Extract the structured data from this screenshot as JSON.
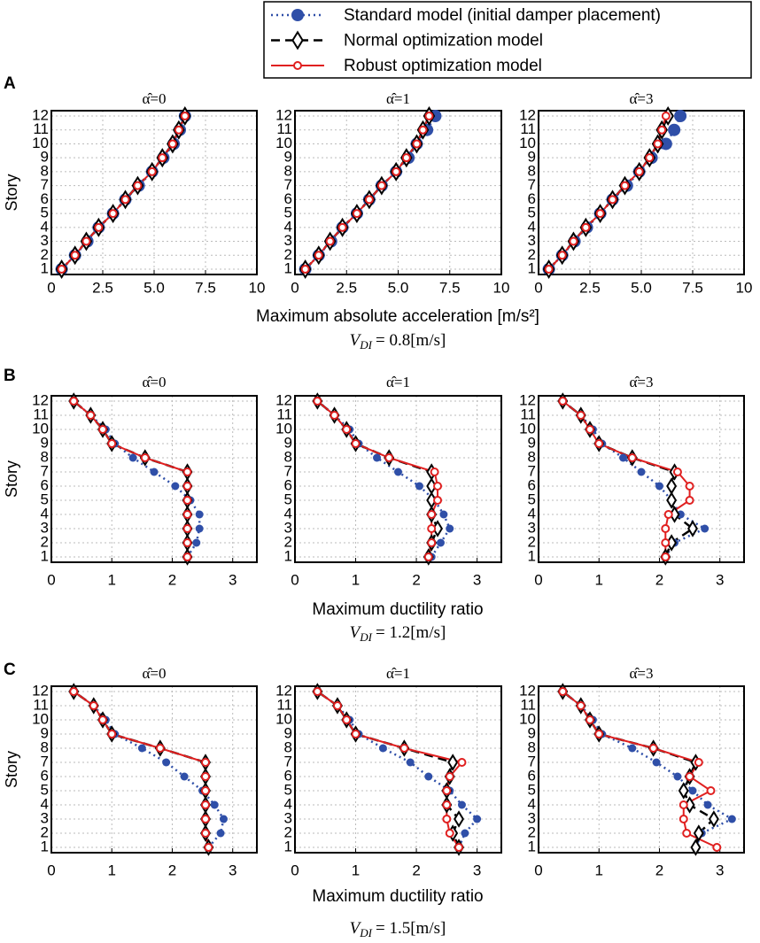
{
  "legend": [
    {
      "name": "Standard model (initial damper placement)",
      "color": "#2f4fa8"
    },
    {
      "name": "Normal optimization model",
      "color": "#000000"
    },
    {
      "name": "Robust optimization model",
      "color": "#e02020"
    }
  ],
  "rows": [
    {
      "label": "A",
      "ylabel": "Story",
      "xlabel": "Maximum absolute acceleration [m/s²]",
      "annotation_var": "V",
      "annotation_sub": "DI",
      "annotation_text": "= 0.8[m/s]"
    },
    {
      "label": "B",
      "ylabel": "Story",
      "xlabel": "Maximum ductility ratio",
      "annotation_var": "V",
      "annotation_sub": "DI",
      "annotation_text": "= 1.2[m/s]"
    },
    {
      "label": "C",
      "ylabel": "Story",
      "xlabel": "Maximum ductility ratio",
      "annotation_var": "V",
      "annotation_sub": "DI",
      "annotation_text": "= 1.5[m/s]"
    }
  ],
  "chart_data": [
    {
      "type": "line",
      "title": "α̂=0",
      "grid": true,
      "xlim": [
        0,
        10
      ],
      "xticks": [
        0,
        2.5,
        {
          "value": 5,
          "label": "5.0"
        },
        7.5,
        10
      ],
      "categories": [
        1,
        2,
        3,
        4,
        5,
        6,
        7,
        8,
        9,
        10,
        11,
        12
      ],
      "series": [
        {
          "values": [
            0.5,
            1.15,
            1.75,
            2.3,
            3.0,
            3.6,
            4.25,
            4.9,
            5.45,
            5.95,
            6.25,
            6.5
          ]
        },
        {
          "values": [
            0.5,
            1.15,
            1.7,
            2.3,
            3.0,
            3.6,
            4.2,
            4.9,
            5.4,
            5.9,
            6.2,
            6.5
          ]
        },
        {
          "values": [
            0.5,
            1.15,
            1.7,
            2.3,
            3.0,
            3.6,
            4.2,
            4.9,
            5.4,
            5.9,
            6.2,
            6.5
          ]
        }
      ]
    },
    {
      "type": "line",
      "title": "α̂=1",
      "grid": true,
      "xlim": [
        0,
        10
      ],
      "xticks": [
        0,
        2.5,
        {
          "value": 5,
          "label": "5.0"
        },
        7.5,
        10
      ],
      "categories": [
        1,
        2,
        3,
        4,
        5,
        6,
        7,
        8,
        9,
        10,
        11,
        12
      ],
      "series": [
        {
          "values": [
            0.5,
            1.15,
            1.75,
            2.3,
            3.0,
            3.6,
            4.2,
            4.9,
            5.5,
            5.9,
            6.4,
            6.8
          ]
        },
        {
          "values": [
            0.5,
            1.15,
            1.7,
            2.3,
            3.0,
            3.6,
            4.2,
            4.9,
            5.4,
            5.9,
            6.2,
            6.5
          ]
        },
        {
          "values": [
            0.5,
            1.15,
            1.7,
            2.3,
            3.0,
            3.6,
            4.2,
            4.9,
            5.4,
            5.9,
            6.2,
            6.5
          ]
        }
      ]
    },
    {
      "type": "line",
      "title": "α̂=3",
      "grid": true,
      "xlim": [
        0,
        10
      ],
      "xticks": [
        0,
        2.5,
        {
          "value": 5,
          "label": "5.0"
        },
        7.5,
        10
      ],
      "categories": [
        1,
        2,
        3,
        4,
        5,
        6,
        7,
        8,
        9,
        10,
        11,
        12
      ],
      "series": [
        {
          "values": [
            0.5,
            1.15,
            1.75,
            2.35,
            3.0,
            3.6,
            4.3,
            4.9,
            5.5,
            6.2,
            6.6,
            6.9
          ]
        },
        {
          "values": [
            0.5,
            1.15,
            1.7,
            2.3,
            3.0,
            3.6,
            4.2,
            4.9,
            5.4,
            5.8,
            6.0,
            6.3
          ]
        },
        {
          "values": [
            0.5,
            1.15,
            1.7,
            2.3,
            3.0,
            3.6,
            4.2,
            4.9,
            5.4,
            5.8,
            6.0,
            6.2
          ]
        }
      ]
    },
    {
      "type": "line",
      "title": "α̂=0",
      "grid": true,
      "xlim": [
        0,
        3.4
      ],
      "xticks": [
        0,
        1,
        2,
        3
      ],
      "categories": [
        1,
        2,
        3,
        4,
        5,
        6,
        7,
        8,
        9,
        10,
        11,
        12
      ],
      "series": [
        {
          "values": [
            2.25,
            2.4,
            2.45,
            2.45,
            2.3,
            2.05,
            1.7,
            1.35,
            1.05,
            0.9,
            0.65,
            0.37
          ]
        },
        {
          "values": [
            2.25,
            2.25,
            2.25,
            2.25,
            2.25,
            2.25,
            2.25,
            1.55,
            1.0,
            0.85,
            0.65,
            0.37
          ]
        },
        {
          "values": [
            2.25,
            2.25,
            2.25,
            2.25,
            2.25,
            2.25,
            2.25,
            1.55,
            1.0,
            0.85,
            0.65,
            0.37
          ]
        }
      ]
    },
    {
      "type": "line",
      "title": "α̂=1",
      "grid": true,
      "xlim": [
        0,
        3.4
      ],
      "xticks": [
        0,
        1,
        2,
        3
      ],
      "categories": [
        1,
        2,
        3,
        4,
        5,
        6,
        7,
        8,
        9,
        10,
        11,
        12
      ],
      "series": [
        {
          "values": [
            2.25,
            2.4,
            2.55,
            2.45,
            2.3,
            2.05,
            1.7,
            1.35,
            1.05,
            0.9,
            0.65,
            0.37
          ]
        },
        {
          "values": [
            2.2,
            2.25,
            2.35,
            2.25,
            2.25,
            2.25,
            2.25,
            1.55,
            1.0,
            0.85,
            0.65,
            0.37
          ]
        },
        {
          "values": [
            2.2,
            2.25,
            2.25,
            2.25,
            2.35,
            2.35,
            2.3,
            1.55,
            1.0,
            0.85,
            0.65,
            0.37
          ]
        }
      ]
    },
    {
      "type": "line",
      "title": "α̂=3",
      "grid": true,
      "xlim": [
        0,
        3.4
      ],
      "xticks": [
        0,
        1,
        2,
        3
      ],
      "categories": [
        1,
        2,
        3,
        4,
        5,
        6,
        7,
        8,
        9,
        10,
        11,
        12
      ],
      "series": [
        {
          "values": [
            2.1,
            2.25,
            2.75,
            2.35,
            2.2,
            2.0,
            1.7,
            1.4,
            1.05,
            0.9,
            0.7,
            0.4
          ]
        },
        {
          "values": [
            2.1,
            2.2,
            2.55,
            2.25,
            2.2,
            2.2,
            2.25,
            1.55,
            1.0,
            0.85,
            0.7,
            0.4
          ]
        },
        {
          "values": [
            2.1,
            2.1,
            2.1,
            2.15,
            2.5,
            2.5,
            2.3,
            1.55,
            1.0,
            0.85,
            0.7,
            0.4
          ]
        }
      ]
    },
    {
      "type": "line",
      "title": "α̂=0",
      "grid": true,
      "xlim": [
        0,
        3.4
      ],
      "xticks": [
        0,
        1,
        2,
        3
      ],
      "categories": [
        1,
        2,
        3,
        4,
        5,
        6,
        7,
        8,
        9,
        10,
        11,
        12
      ],
      "series": [
        {
          "values": [
            2.6,
            2.8,
            2.85,
            2.7,
            2.5,
            2.2,
            1.9,
            1.5,
            1.05,
            0.9,
            0.7,
            0.37
          ]
        },
        {
          "values": [
            2.6,
            2.55,
            2.55,
            2.55,
            2.55,
            2.55,
            2.55,
            1.8,
            1.0,
            0.85,
            0.7,
            0.37
          ]
        },
        {
          "values": [
            2.6,
            2.55,
            2.55,
            2.55,
            2.55,
            2.55,
            2.55,
            1.8,
            1.0,
            0.85,
            0.7,
            0.37
          ]
        }
      ]
    },
    {
      "type": "line",
      "title": "α̂=1",
      "grid": true,
      "xlim": [
        0,
        3.4
      ],
      "xticks": [
        0,
        1,
        2,
        3
      ],
      "categories": [
        1,
        2,
        3,
        4,
        5,
        6,
        7,
        8,
        9,
        10,
        11,
        12
      ],
      "series": [
        {
          "values": [
            2.7,
            2.8,
            3.0,
            2.75,
            2.55,
            2.2,
            1.9,
            1.45,
            1.05,
            0.9,
            0.7,
            0.37
          ]
        },
        {
          "values": [
            2.7,
            2.6,
            2.7,
            2.5,
            2.5,
            2.55,
            2.6,
            1.8,
            1.0,
            0.85,
            0.7,
            0.37
          ]
        },
        {
          "values": [
            2.7,
            2.55,
            2.5,
            2.5,
            2.5,
            2.55,
            2.75,
            1.8,
            1.0,
            0.85,
            0.7,
            0.37
          ]
        }
      ]
    },
    {
      "type": "line",
      "title": "α̂=3",
      "grid": true,
      "xlim": [
        0,
        3.4
      ],
      "xticks": [
        0,
        1,
        2,
        3
      ],
      "categories": [
        1,
        2,
        3,
        4,
        5,
        6,
        7,
        8,
        9,
        10,
        11,
        12
      ],
      "series": [
        {
          "values": [
            2.6,
            2.7,
            3.2,
            2.8,
            2.55,
            2.3,
            1.95,
            1.55,
            1.05,
            0.9,
            0.7,
            0.4
          ]
        },
        {
          "values": [
            2.6,
            2.65,
            2.9,
            2.5,
            2.4,
            2.5,
            2.6,
            1.9,
            1.0,
            0.85,
            0.7,
            0.4
          ]
        },
        {
          "values": [
            2.95,
            2.45,
            2.4,
            2.4,
            2.85,
            2.5,
            2.65,
            1.9,
            1.0,
            0.85,
            0.7,
            0.4
          ]
        }
      ]
    }
  ]
}
